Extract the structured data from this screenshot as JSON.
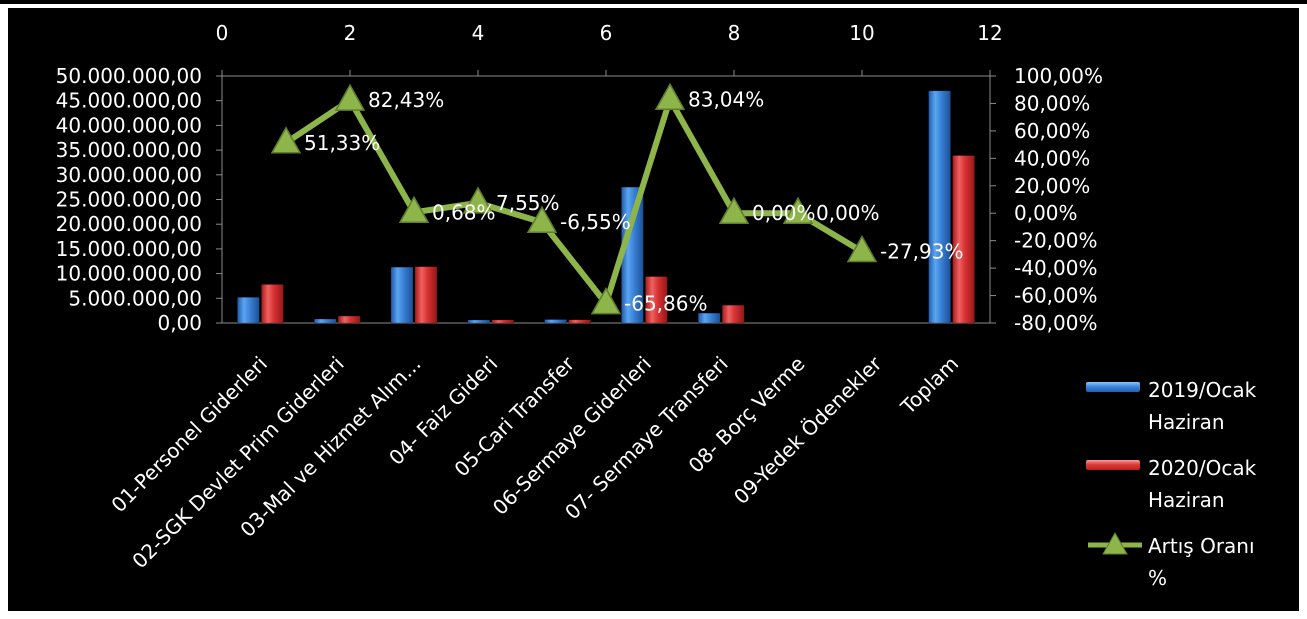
{
  "chart_data": {
    "type": "bar",
    "categories": [
      "01-Personel Giderleri",
      "02-SGK Devlet Prim Giderleri",
      "03-Mal ve Hizmet Alım...",
      "04- Faiz Gideri",
      "05-Cari Transfer",
      "06-Sermaye Giderleri",
      "07- Sermaye Transferi",
      "08- Borç Verme",
      "09-Yedek Ödenekler",
      "Toplam"
    ],
    "series": [
      {
        "name": "2019/Ocak Haziran",
        "type": "bar",
        "axis": "left",
        "color": "#3c82d8",
        "values": [
          5200000,
          800000,
          11300000,
          450000,
          700000,
          27500000,
          2000000,
          0,
          0,
          47000000
        ]
      },
      {
        "name": "2020/Ocak Haziran",
        "type": "bar",
        "axis": "left",
        "color": "#dc3a3a",
        "values": [
          7800000,
          1400000,
          11400000,
          500000,
          650000,
          9400000,
          3600000,
          0,
          0,
          33900000
        ]
      },
      {
        "name": "Artış Oranı %",
        "type": "line",
        "axis": "right",
        "color": "#8db54a",
        "x": [
          1,
          2,
          3,
          4,
          5,
          6,
          7,
          8,
          9,
          10
        ],
        "values": [
          51.33,
          82.43,
          0.68,
          7.55,
          -6.55,
          -65.86,
          83.04,
          0.0,
          0.0,
          -27.93
        ],
        "labels": [
          "51,33%",
          "82,43%",
          "0,68%",
          "7,55%",
          "-6,55%",
          "-65,86%",
          "83,04%",
          "0,00%",
          "0,00%",
          "-27,93%"
        ]
      }
    ],
    "axes": {
      "left": {
        "ylim": [
          0,
          50000000
        ],
        "ticks": [
          "0,00",
          "5.000.000,00",
          "10.000.000,00",
          "15.000.000,00",
          "20.000.000,00",
          "25.000.000,00",
          "30.000.000,00",
          "35.000.000,00",
          "40.000.000,00",
          "45.000.000,00",
          "50.000.000,00"
        ]
      },
      "right": {
        "ylim": [
          -80,
          100
        ],
        "ticks": [
          "-80,00%",
          "-60,00%",
          "-40,00%",
          "-20,00%",
          "0,00%",
          "20,00%",
          "40,00%",
          "60,00%",
          "80,00%",
          "100,00%"
        ]
      },
      "top": {
        "xlim": [
          0,
          12
        ],
        "ticks": [
          "0",
          "2",
          "4",
          "6",
          "8",
          "10",
          "12"
        ]
      }
    },
    "grid": false,
    "legend": "right",
    "title": "",
    "xlabel": "",
    "ylabel": ""
  },
  "legend": [
    {
      "line1": "2019/Ocak",
      "line2": "Haziran"
    },
    {
      "line1": "2020/Ocak",
      "line2": "Haziran"
    },
    {
      "line1": "Artış Oranı",
      "line2": "%"
    }
  ],
  "colors": {
    "background": "#000000",
    "frame": "#ffffff",
    "text": "#ffffff",
    "axis": "#8c8c8c"
  }
}
